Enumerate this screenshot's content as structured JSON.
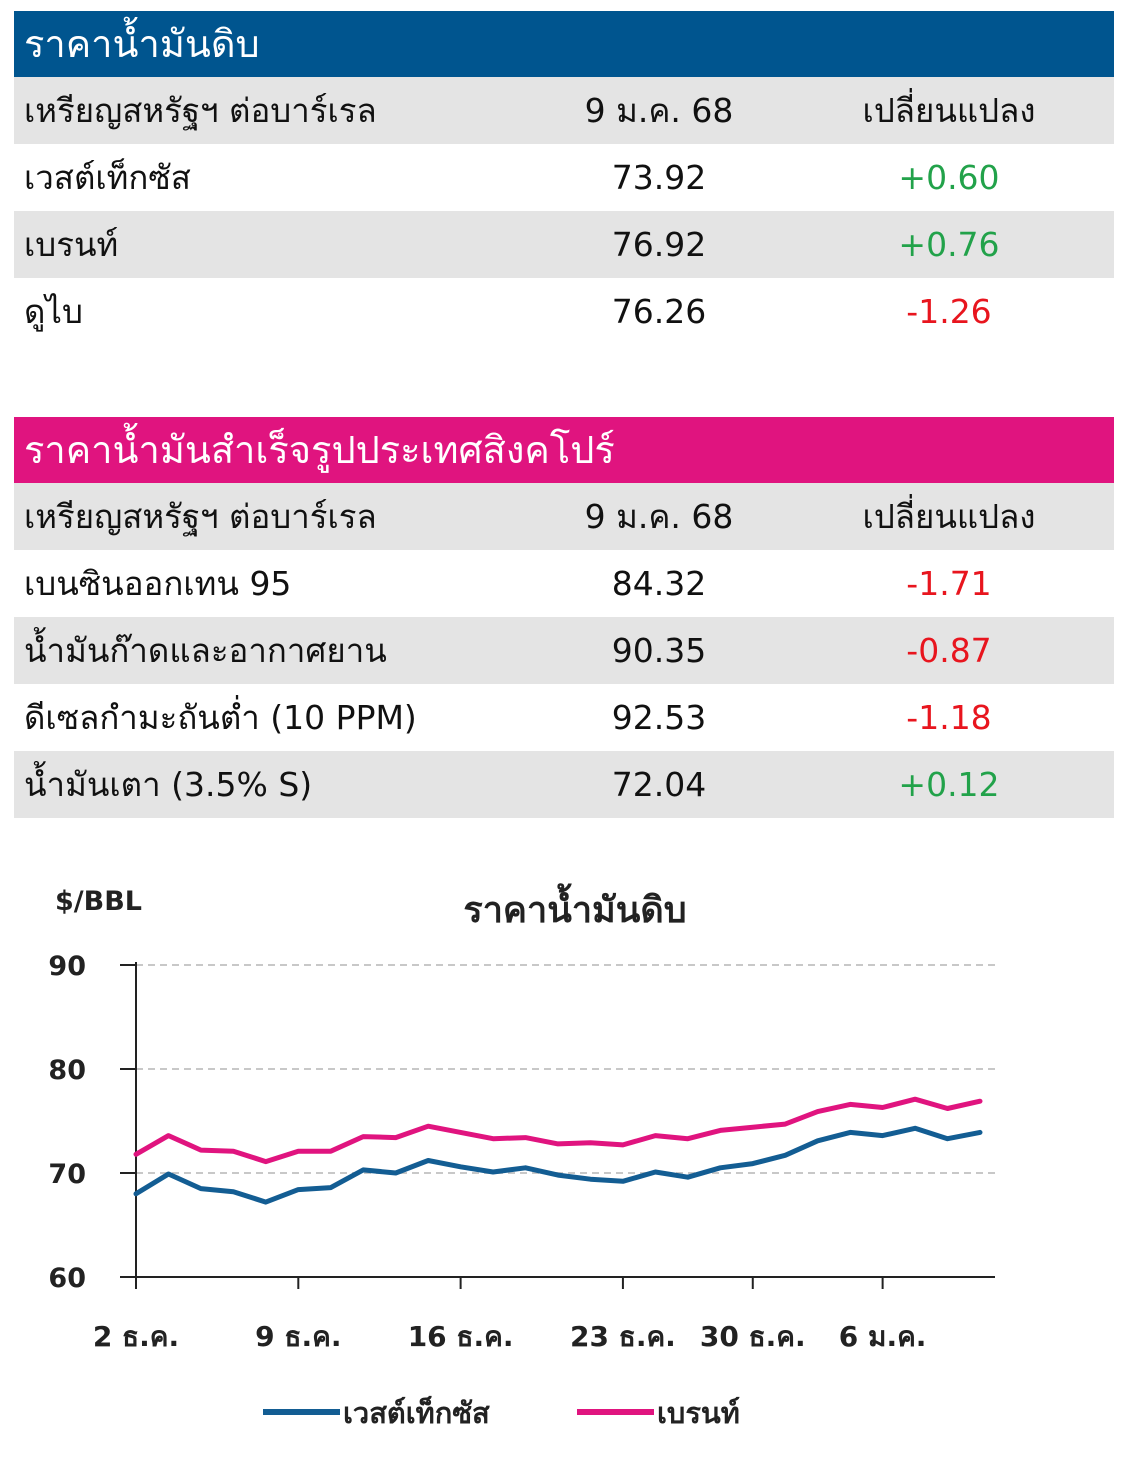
{
  "crude": {
    "title": "ราคาน้ำมันดิบ",
    "header": {
      "name": "เหรียญสหรัฐฯ ต่อบาร์เรล",
      "date": "9 ม.ค. 68",
      "change": "เปลี่ยนแปลง"
    },
    "rows": [
      {
        "name": "เวสต์เท็กซัส",
        "value": "73.92",
        "change": "+0.60",
        "dir": "pos"
      },
      {
        "name": "เบรนท์",
        "value": "76.92",
        "change": "+0.76",
        "dir": "pos"
      },
      {
        "name": "ดูไบ",
        "value": "76.26",
        "change": "-1.26",
        "dir": "neg"
      }
    ]
  },
  "singapore": {
    "title": "ราคาน้ำมันสำเร็จรูปประเทศสิงคโปร์",
    "header": {
      "name": "เหรียญสหรัฐฯ ต่อบาร์เรล",
      "date": "9 ม.ค. 68",
      "change": "เปลี่ยนแปลง"
    },
    "rows": [
      {
        "name": "เบนซินออกเทน 95",
        "value": "84.32",
        "change": "-1.71",
        "dir": "neg"
      },
      {
        "name": "น้ำมันก๊าดและอากาศยาน",
        "value": "90.35",
        "change": "-0.87",
        "dir": "neg"
      },
      {
        "name": "ดีเซลกำมะถันต่ำ (10 PPM)",
        "value": "92.53",
        "change": "-1.18",
        "dir": "neg"
      },
      {
        "name": "น้ำมันเตา (3.5% S)",
        "value": "72.04",
        "change": "+0.12",
        "dir": "pos"
      }
    ]
  },
  "colors": {
    "wti": "#135d93",
    "brent": "#e0147f",
    "positive": "#22a24a",
    "negative": "#e8151e"
  },
  "chart_data": {
    "type": "line",
    "title": "ราคาน้ำมันดิบ",
    "ylabel": "$/BBL",
    "ylim": [
      60,
      90
    ],
    "yticks": [
      60,
      70,
      80,
      90
    ],
    "grid": true,
    "legend_position": "bottom",
    "x_ticks": [
      "2 ธ.ค.",
      "9 ธ.ค.",
      "16 ธ.ค.",
      "23 ธ.ค.",
      "30 ธ.ค.",
      "6 ม.ค."
    ],
    "x": [
      "2 Dec",
      "3 Dec",
      "4 Dec",
      "5 Dec",
      "6 Dec",
      "9 Dec",
      "10 Dec",
      "11 Dec",
      "12 Dec",
      "13 Dec",
      "16 Dec",
      "17 Dec",
      "18 Dec",
      "19 Dec",
      "20 Dec",
      "23 Dec",
      "24 Dec",
      "26 Dec",
      "27 Dec",
      "30 Dec",
      "31 Dec",
      "2 Jan",
      "3 Jan",
      "6 Jan",
      "7 Jan",
      "8 Jan",
      "9 Jan"
    ],
    "series": [
      {
        "name": "เวสต์เท็กซัส",
        "values": [
          68.0,
          69.9,
          68.5,
          68.2,
          67.2,
          68.4,
          68.6,
          70.3,
          70.0,
          71.2,
          70.6,
          70.1,
          70.5,
          69.8,
          69.4,
          69.2,
          70.1,
          69.6,
          70.5,
          70.9,
          71.7,
          73.1,
          73.9,
          73.6,
          74.3,
          73.3,
          73.9
        ]
      },
      {
        "name": "เบรนท์",
        "values": [
          71.8,
          73.6,
          72.2,
          72.1,
          71.1,
          72.1,
          72.1,
          73.5,
          73.4,
          74.5,
          73.9,
          73.3,
          73.4,
          72.8,
          72.9,
          72.7,
          73.6,
          73.3,
          74.1,
          74.4,
          74.7,
          75.9,
          76.6,
          76.3,
          77.1,
          76.2,
          76.9
        ]
      }
    ]
  }
}
